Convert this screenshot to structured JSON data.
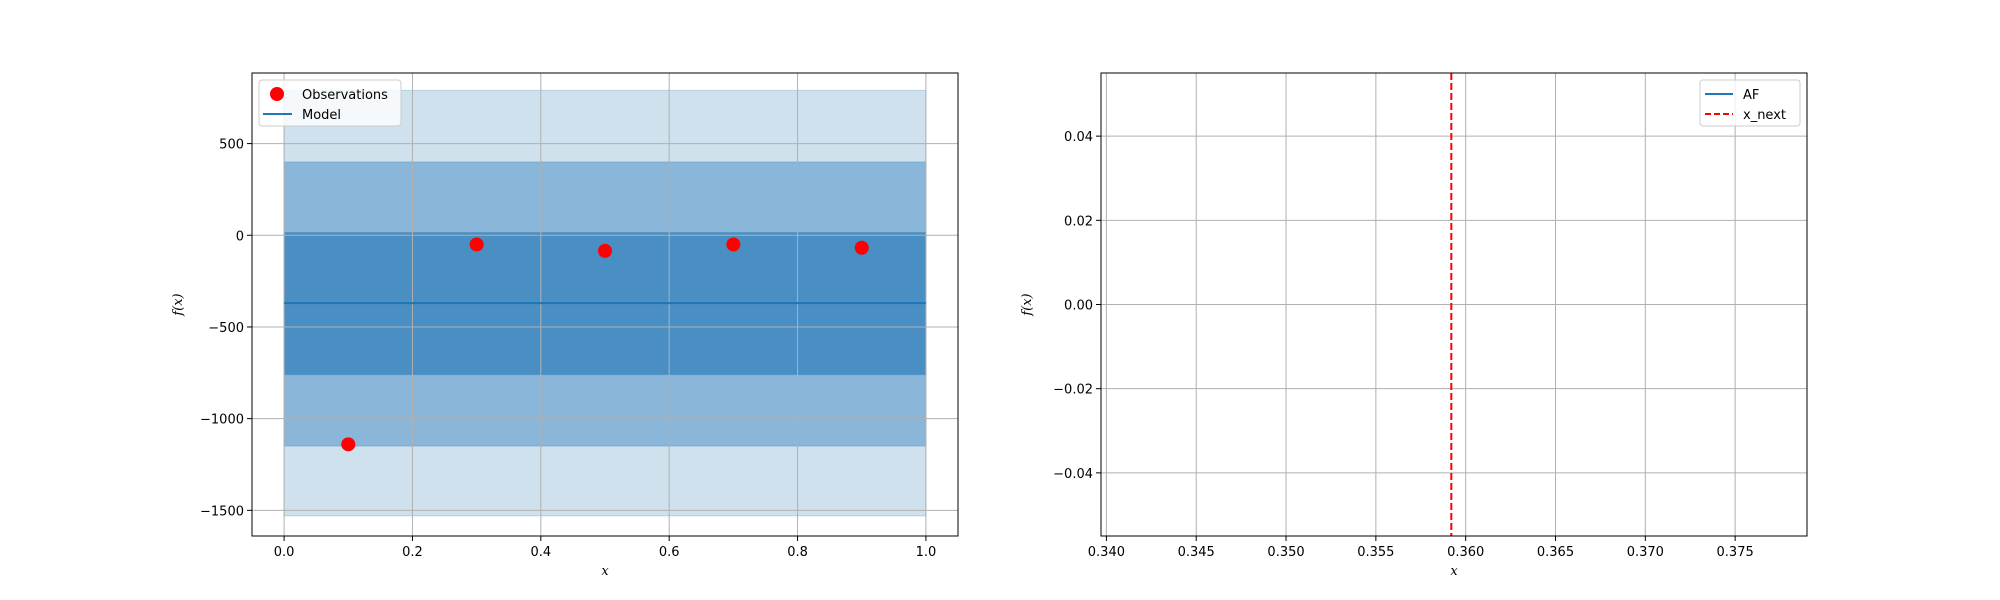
{
  "colors": {
    "observations": "#ff0000",
    "model": "#1f77b4",
    "band_outer": "#d0e1ee",
    "band_middle": "#8ab7d9",
    "band_inner": "#4a8fc4",
    "af": "#1f77b4",
    "x_next": "#ff0000",
    "grid": "#b0b0b0"
  },
  "chart_data": [
    {
      "type": "line",
      "title": "",
      "xlabel": "x",
      "ylabel": "f(x)",
      "xlim": [
        -0.05,
        1.05
      ],
      "ylim": [
        -1640,
        885
      ],
      "xticks": [
        0.0,
        0.2,
        0.4,
        0.6,
        0.8,
        1.0
      ],
      "xtick_labels": [
        "0.0",
        "0.2",
        "0.4",
        "0.6",
        "0.8",
        "1.0"
      ],
      "yticks": [
        500,
        0,
        -500,
        -1000,
        -1500
      ],
      "ytick_labels": [
        "500",
        "0",
        "−500",
        "−1000",
        "−1500"
      ],
      "grid": true,
      "legend_position": "top-left",
      "legend": [
        "Observations",
        "Model"
      ],
      "series": [
        {
          "name": "Observations",
          "kind": "scatter",
          "x": [
            0.1,
            0.3,
            0.5,
            0.7,
            0.9
          ],
          "y": [
            -1140,
            -50,
            -85,
            -50,
            -68
          ]
        },
        {
          "name": "Model",
          "kind": "line",
          "x": [
            0.0,
            1.0
          ],
          "y": [
            -370,
            -370
          ]
        }
      ],
      "bands": [
        {
          "level": "outer",
          "x": [
            0.0,
            1.0
          ],
          "lower": -1530,
          "upper": 790
        },
        {
          "level": "middle",
          "x": [
            0.0,
            1.0
          ],
          "lower": -1150,
          "upper": 400
        },
        {
          "level": "inner",
          "x": [
            0.0,
            1.0
          ],
          "lower": -760,
          "upper": 15
        }
      ]
    },
    {
      "type": "line",
      "title": "",
      "xlabel": "x",
      "ylabel": "f(x)",
      "xlim": [
        0.3397,
        0.379
      ],
      "ylim": [
        -0.055,
        0.055
      ],
      "xticks": [
        0.34,
        0.345,
        0.35,
        0.355,
        0.36,
        0.365,
        0.37,
        0.375
      ],
      "xtick_labels": [
        "0.340",
        "0.345",
        "0.350",
        "0.355",
        "0.360",
        "0.365",
        "0.370",
        "0.375"
      ],
      "yticks": [
        0.04,
        0.02,
        0.0,
        -0.02,
        -0.04
      ],
      "ytick_labels": [
        "0.04",
        "0.02",
        "0.00",
        "−0.02",
        "−0.04"
      ],
      "grid": true,
      "legend_position": "top-right",
      "legend": [
        "AF",
        "x_next"
      ],
      "series": [
        {
          "name": "AF",
          "kind": "line",
          "x": [],
          "y": []
        },
        {
          "name": "x_next",
          "kind": "vline",
          "x": 0.3592
        }
      ]
    }
  ]
}
